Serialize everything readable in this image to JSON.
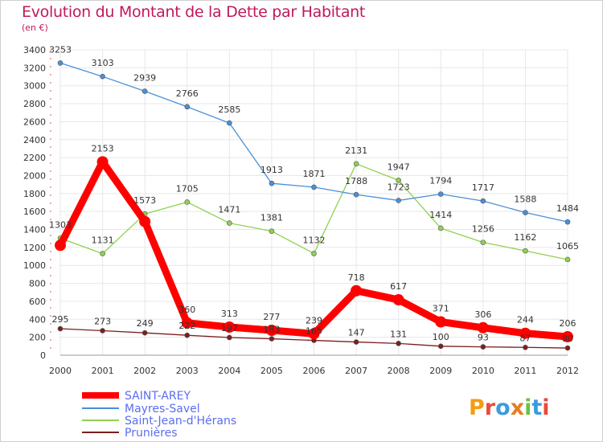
{
  "title": "Evolution du Montant de la Dette par Habitant",
  "subtitle": "(en €)",
  "logo": "Proxiti",
  "colors": {
    "title": "#c2185b",
    "legend_text": "#5b6cf0",
    "grid": "#e7e7e7",
    "axis": "#999999"
  },
  "chart_data": {
    "type": "line",
    "title": "Evolution du Montant de la Dette par Habitant",
    "subtitle": "(en €)",
    "xlabel": "",
    "ylabel": "",
    "categories": [
      "2000",
      "2001",
      "2002",
      "2003",
      "2004",
      "2005",
      "2006",
      "2007",
      "2008",
      "2009",
      "2010",
      "2011",
      "2012"
    ],
    "ylim": [
      0,
      3400
    ],
    "yticks": [
      0,
      200,
      400,
      600,
      800,
      1000,
      1200,
      1400,
      1600,
      1800,
      2000,
      2200,
      2400,
      2600,
      2800,
      3000,
      3200,
      3400
    ],
    "grid": true,
    "legend": "bottom-left",
    "series": [
      {
        "name": "SAINT-AREY",
        "color": "#ff0000",
        "width": 9,
        "values": [
          1223,
          2153,
          1488,
          360,
          313,
          277,
          239,
          718,
          617,
          371,
          306,
          244,
          206
        ],
        "labels": [
          "",
          "2153",
          "",
          "360",
          "313",
          "277",
          "239",
          "718",
          "617",
          "371",
          "306",
          "244",
          "206"
        ]
      },
      {
        "name": "Mayres-Savel",
        "color": "#4a90d9",
        "width": 1.3,
        "values": [
          3253,
          3103,
          2939,
          2766,
          2585,
          1913,
          1871,
          1788,
          1723,
          1794,
          1717,
          1588,
          1484
        ],
        "labels": [
          "3253",
          "3103",
          "2939",
          "2766",
          "2585",
          "1913",
          "1871",
          "1788",
          "1723",
          "1794",
          "1717",
          "1588",
          "1484"
        ]
      },
      {
        "name": "Saint-Jean-d'Hérans",
        "color": "#8fd14f",
        "width": 1.3,
        "values": [
          1303,
          1131,
          1573,
          1705,
          1471,
          1381,
          1132,
          2131,
          1947,
          1414,
          1256,
          1162,
          1065
        ],
        "labels": [
          "1303",
          "1131",
          "1573",
          "1705",
          "1471",
          "1381",
          "1132",
          "2131",
          "1947",
          "1414",
          "1256",
          "1162",
          "1065"
        ]
      },
      {
        "name": "Prunières",
        "color": "#7b1f1f",
        "width": 1.3,
        "values": [
          295,
          273,
          249,
          222,
          197,
          183,
          165,
          147,
          131,
          100,
          93,
          87,
          80
        ],
        "labels": [
          "295",
          "273",
          "249",
          "222",
          "197",
          "183",
          "165",
          "147",
          "131",
          "100",
          "93",
          "87",
          "80"
        ]
      }
    ]
  }
}
